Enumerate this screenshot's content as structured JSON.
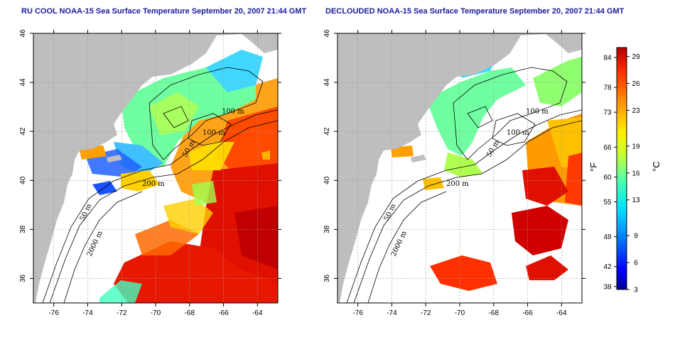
{
  "titles": {
    "left": "RU COOL NOAA-15 Sea Surface Temperature September 20, 2007 21:44 GMT",
    "right": "DECLOUDED NOAA-15 Sea Surface Temperature September 20, 2007 21:44 GMT"
  },
  "map": {
    "lon_ticks": [
      "-76",
      "-74",
      "-72",
      "-70",
      "-68",
      "-66",
      "-64"
    ],
    "lat_ticks": [
      "46",
      "44",
      "42",
      "40",
      "38",
      "36"
    ],
    "lon_range": [
      -77.2,
      -62.8
    ],
    "lat_range": [
      35.0,
      46.0
    ],
    "land_color": "#bebebe",
    "ocean_color": "#ffffff"
  },
  "contour_labels": {
    "left": [
      "100 m",
      "100 m",
      "50 m",
      "200 m",
      "50 m",
      "2000 m"
    ],
    "right": [
      "100 m",
      "100 m",
      "50 m",
      "200 m",
      "50 m",
      "2000 m"
    ]
  },
  "colorbar": {
    "fahrenheit_label": "°F",
    "celsius_label": "°C",
    "fahrenheit_ticks": [
      "84",
      "78",
      "73",
      "66",
      "60",
      "55",
      "48",
      "42",
      "38"
    ],
    "celsius_ticks": [
      "29",
      "26",
      "23",
      "19",
      "16",
      "13",
      "9",
      "6",
      "3"
    ],
    "range_c": [
      3,
      30
    ],
    "colors": [
      "#00008f",
      "#0000ff",
      "#0070ff",
      "#00dfff",
      "#4fffaf",
      "#bfff3f",
      "#ffef00",
      "#ff8f00",
      "#ff2f00",
      "#af0000"
    ]
  }
}
